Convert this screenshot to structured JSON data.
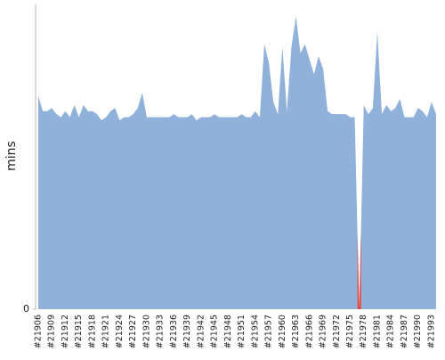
{
  "chart_data": {
    "type": "area",
    "ylabel": "mins",
    "categories": [
      "#21906",
      null,
      null,
      "#21909",
      null,
      null,
      "#21912",
      null,
      null,
      "#21915",
      null,
      null,
      "#21918",
      null,
      null,
      "#21921",
      null,
      null,
      "#21924",
      null,
      null,
      "#21927",
      null,
      null,
      "#21930",
      null,
      null,
      "#21933",
      null,
      null,
      "#21936",
      null,
      null,
      "#21939",
      null,
      null,
      "#21942",
      null,
      null,
      "#21945",
      null,
      null,
      "#21948",
      null,
      null,
      "#21951",
      null,
      null,
      "#21954",
      null,
      null,
      "#21957",
      null,
      null,
      "#21960",
      null,
      null,
      "#21963",
      null,
      null,
      "#21966",
      null,
      null,
      "#21969",
      null,
      null,
      "#21972",
      null,
      null,
      "#21975",
      null,
      null,
      "#21978",
      null,
      null,
      "#21981",
      null,
      null,
      "#21984",
      null,
      null,
      "#21987",
      null,
      null,
      "#21990",
      null,
      null,
      "#21993",
      null
    ],
    "series": [
      {
        "color": "#8fb1da",
        "values": [
          70,
          65,
          65,
          66,
          64,
          63,
          65,
          63,
          67,
          63,
          67,
          65,
          65,
          64,
          62,
          63,
          65,
          66,
          62,
          63,
          63,
          64,
          66,
          71,
          63,
          63,
          63,
          63,
          63,
          63,
          64,
          63,
          63,
          63,
          64,
          62,
          63,
          63,
          63,
          64,
          63,
          63,
          63,
          63,
          63,
          64,
          63,
          63,
          65,
          63,
          87,
          81,
          68,
          64,
          86,
          65,
          86,
          96,
          84,
          87,
          82,
          77,
          83,
          79,
          65,
          64,
          64,
          64,
          64,
          63,
          63,
          0,
          67,
          64,
          66,
          91,
          64,
          67,
          65,
          66,
          69,
          63,
          63,
          63,
          66,
          65,
          63,
          68,
          64
        ]
      }
    ],
    "highlight_color": "#e8473f",
    "ylim": [
      0,
      100
    ],
    "yticks": [
      0
    ]
  }
}
